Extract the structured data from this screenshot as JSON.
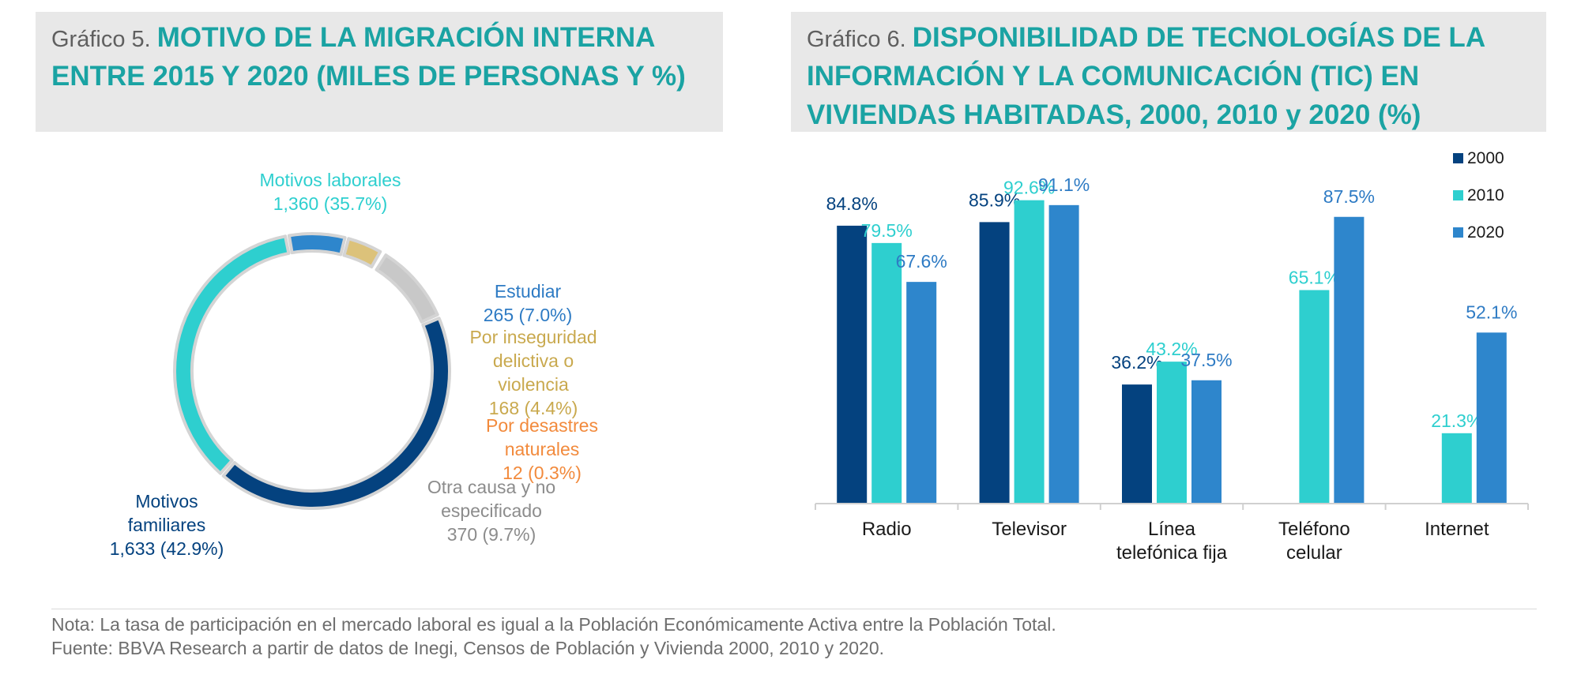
{
  "chart5": {
    "prefix": "Gráfico 5. ",
    "title": "MOTIVO DE LA MIGRACIÓN INTERNA ENTRE 2015 Y 2020 (MILES DE PERSONAS Y %)"
  },
  "chart6": {
    "prefix": "Gráfico 6. ",
    "title": "DISPONIBILIDAD DE TECNOLOGÍAS DE LA INFORMACIÓN Y LA COMUNICACIÓN (TIC) EN VIVIENDAS HABITADAS, 2000, 2010 y 2020 (%)"
  },
  "notes": {
    "nota": "Nota: La tasa de participación en el mercado laboral es igual a la Población Económicamente Activa entre la Población Total.",
    "fuente": "Fuente: BBVA Research a partir de datos de Inegi, Censos de Población y Vivienda 2000, 2010 y 2020."
  },
  "chart_data": [
    {
      "type": "pie",
      "variant": "donut",
      "title": "MOTIVO DE LA MIGRACIÓN INTERNA ENTRE 2015 Y 2020 (MILES DE PERSONAS Y %)",
      "slices": [
        {
          "label_lines": [
            "Motivos laborales"
          ],
          "value_text": "1,360 (35.7%)",
          "value": 1360,
          "percent": 35.7,
          "color": "#2ecfcf",
          "label_color": "#2ecfcf"
        },
        {
          "label_lines": [
            "Estudiar"
          ],
          "value_text": "265 (7.0%)",
          "value": 265,
          "percent": 7.0,
          "color": "#2e86cc",
          "label_color": "#2e7bc4"
        },
        {
          "label_lines": [
            "Por inseguridad",
            "delictiva o",
            "violencia"
          ],
          "value_text": "168 (4.4%)",
          "value": 168,
          "percent": 4.4,
          "color": "#dcc27a",
          "label_color": "#c9a94e"
        },
        {
          "label_lines": [
            "Por desastres",
            "naturales"
          ],
          "value_text": "12 (0.3%)",
          "value": 12,
          "percent": 0.3,
          "color": "#f28a3c",
          "label_color": "#f28a3c"
        },
        {
          "label_lines": [
            "Otra causa y no",
            "especificado"
          ],
          "value_text": "370 (9.7%)",
          "value": 370,
          "percent": 9.7,
          "color": "#c8c8c8",
          "label_color": "#8c8c8c"
        },
        {
          "label_lines": [
            "Motivos",
            "familiares"
          ],
          "value_text": "1,633 (42.9%)",
          "value": 1633,
          "percent": 42.9,
          "color": "#04427f",
          "label_color": "#04427f"
        }
      ]
    },
    {
      "type": "bar",
      "title": "DISPONIBILIDAD DE TECNOLOGÍAS DE LA INFORMACIÓN Y LA COMUNICACIÓN (TIC) EN VIVIENDAS HABITADAS, 2000, 2010 y 2020 (%)",
      "categories": [
        {
          "lines": [
            "Radio"
          ]
        },
        {
          "lines": [
            "Televisor"
          ]
        },
        {
          "lines": [
            "Línea",
            "telefónica fija"
          ]
        },
        {
          "lines": [
            "Teléfono",
            "celular"
          ]
        },
        {
          "lines": [
            "Internet"
          ]
        }
      ],
      "series": [
        {
          "name": "2000",
          "color": "#04427f",
          "values": [
            84.8,
            85.9,
            36.2,
            null,
            null
          ],
          "labels": [
            "84.8%",
            "85.9%",
            "36.2%",
            null,
            null
          ]
        },
        {
          "name": "2010",
          "color": "#2ecfcf",
          "values": [
            79.5,
            92.6,
            43.2,
            65.1,
            21.3
          ],
          "labels": [
            "79.5%",
            "92.6%",
            "43.2%",
            "65.1%",
            "21.3%"
          ]
        },
        {
          "name": "2020",
          "color": "#2e86cc",
          "values": [
            67.6,
            91.1,
            37.5,
            87.5,
            52.1
          ],
          "labels": [
            "67.6%",
            "91.1%",
            "37.5%",
            "87.5%",
            "52.1%"
          ]
        }
      ],
      "ylim": [
        0,
        100
      ],
      "grid": false,
      "legend": "top-right"
    }
  ]
}
